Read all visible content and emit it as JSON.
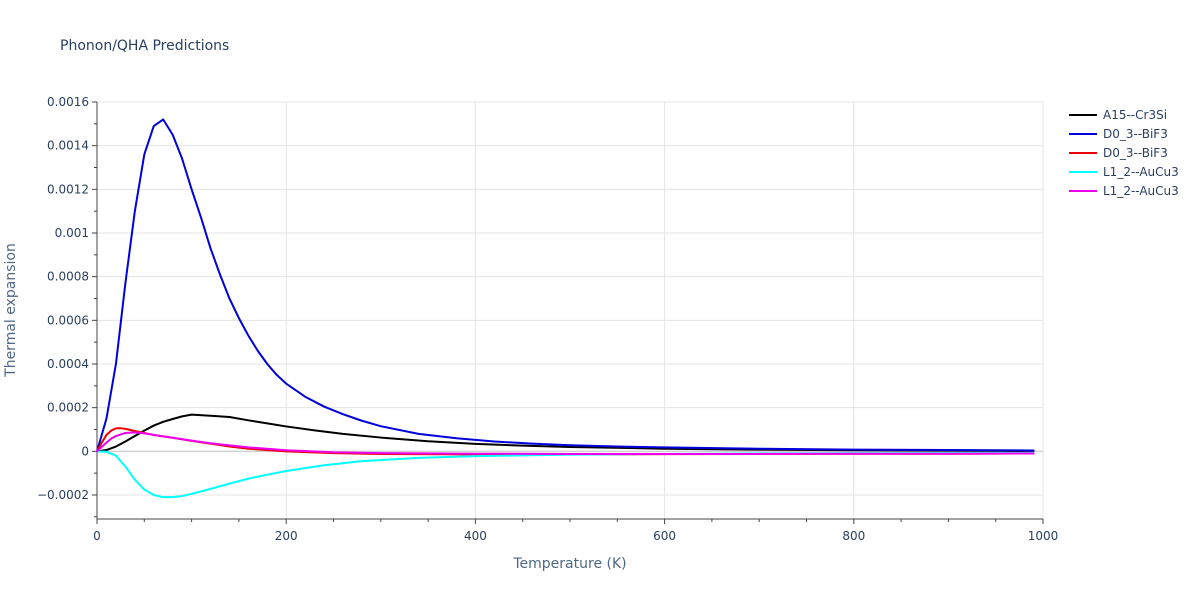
{
  "chart_data": {
    "type": "line",
    "title": "Phonon/QHA Predictions",
    "xlabel": "Temperature (K)",
    "ylabel": "Thermal expansion",
    "xlim": [
      0,
      1000
    ],
    "ylim": [
      -0.00031,
      0.0016
    ],
    "x_ticks": [
      0,
      200,
      400,
      600,
      800,
      1000
    ],
    "x_tick_labels": [
      "0",
      "200",
      "400",
      "600",
      "800",
      "1000"
    ],
    "y_ticks": [
      -0.0002,
      0,
      0.0002,
      0.0004,
      0.0006,
      0.0008,
      0.001,
      0.0012,
      0.0014,
      0.0016
    ],
    "y_tick_labels": [
      "−0.0002",
      "0",
      "0.0002",
      "0.0004",
      "0.0006",
      "0.0008",
      "0.001",
      "0.0012",
      "0.0014",
      "0.0016"
    ],
    "grid": true,
    "legend_position": "top-right",
    "series": [
      {
        "name": "A15--Cr3Si",
        "color": "#000000",
        "x": [
          0,
          10,
          20,
          30,
          40,
          50,
          60,
          70,
          80,
          90,
          100,
          120,
          140,
          160,
          180,
          200,
          230,
          260,
          300,
          350,
          400,
          450,
          500,
          600,
          700,
          800,
          900,
          990
        ],
        "y": [
          0,
          6e-06,
          2.2e-05,
          4.5e-05,
          7e-05,
          9.5e-05,
          0.000118,
          0.000135,
          0.000148,
          0.00016,
          0.000168,
          0.000163,
          0.000157,
          0.000142,
          0.000128,
          0.000114,
          9.6e-05,
          8e-05,
          6.3e-05,
          4.6e-05,
          3.4e-05,
          2.6e-05,
          2e-05,
          1.2e-05,
          8e-06,
          5e-06,
          3e-06,
          2e-06
        ]
      },
      {
        "name": "D0_3--BiF3",
        "color": "#0000dd",
        "x": [
          0,
          10,
          20,
          30,
          40,
          50,
          60,
          70,
          80,
          90,
          100,
          110,
          120,
          130,
          140,
          150,
          160,
          170,
          180,
          190,
          200,
          220,
          240,
          260,
          280,
          300,
          340,
          380,
          420,
          460,
          500,
          550,
          600,
          700,
          800,
          900,
          990
        ],
        "y": [
          0,
          0.00015,
          0.0004,
          0.00077,
          0.0011,
          0.00136,
          0.00149,
          0.00152,
          0.00145,
          0.00134,
          0.0012,
          0.00107,
          0.00093,
          0.00081,
          0.0007,
          0.00061,
          0.00053,
          0.00046,
          0.0004,
          0.00035,
          0.00031,
          0.00025,
          0.000205,
          0.00017,
          0.00014,
          0.000115,
          8e-05,
          6e-05,
          4.5e-05,
          3.5e-05,
          2.8e-05,
          2.2e-05,
          1.8e-05,
          1.2e-05,
          8e-06,
          6e-06,
          4e-06
        ]
      },
      {
        "name": "D0_3--BiF3",
        "color": "#ee0000",
        "x": [
          0,
          5,
          10,
          15,
          20,
          25,
          30,
          40,
          50,
          60,
          80,
          100,
          120,
          140,
          160,
          200,
          250,
          300,
          400,
          500,
          600,
          700,
          800,
          900,
          990
        ],
        "y": [
          0,
          4e-05,
          7.5e-05,
          9.5e-05,
          0.000105,
          0.000106,
          0.000103,
          9.3e-05,
          8.4e-05,
          7.5e-05,
          6.2e-05,
          4.8e-05,
          3.5e-05,
          2.2e-05,
          1.2e-05,
          0.0,
          -8e-06,
          -1.2e-05,
          -1.4e-05,
          -1.4e-05,
          -1.3e-05,
          -1.2e-05,
          -1.1e-05,
          -1.1e-05,
          -1e-05
        ]
      },
      {
        "name": "L1_2--AuCu3",
        "color": "#00ffff",
        "x": [
          0,
          10,
          20,
          30,
          40,
          50,
          60,
          70,
          80,
          90,
          100,
          120,
          140,
          160,
          180,
          200,
          240,
          280,
          340,
          400,
          500,
          600,
          700,
          800,
          900,
          990
        ],
        "y": [
          0,
          -2e-06,
          -2e-05,
          -7e-05,
          -0.00013,
          -0.000175,
          -0.0002,
          -0.00021,
          -0.00021,
          -0.000205,
          -0.000195,
          -0.000172,
          -0.000148,
          -0.000125,
          -0.000107,
          -9e-05,
          -6.4e-05,
          -4.5e-05,
          -3e-05,
          -2.2e-05,
          -1.5e-05,
          -1.2e-05,
          -1e-05,
          -9e-06,
          -8e-06,
          -8e-06
        ]
      },
      {
        "name": "L1_2--AuCu3",
        "color": "#ee00ee",
        "x": [
          0,
          5,
          10,
          15,
          20,
          30,
          40,
          50,
          60,
          80,
          100,
          120,
          140,
          160,
          200,
          250,
          300,
          400,
          500,
          600,
          700,
          800,
          900,
          990
        ],
        "y": [
          0,
          2e-05,
          4e-05,
          5.8e-05,
          7e-05,
          8.4e-05,
          8.7e-05,
          8.2e-05,
          7.5e-05,
          6.2e-05,
          4.9e-05,
          3.7e-05,
          2.7e-05,
          1.8e-05,
          5e-06,
          -4e-06,
          -8e-06,
          -1.1e-05,
          -1.2e-05,
          -1.2e-05,
          -1.2e-05,
          -1.1e-05,
          -1.1e-05,
          -1e-05
        ]
      }
    ]
  }
}
